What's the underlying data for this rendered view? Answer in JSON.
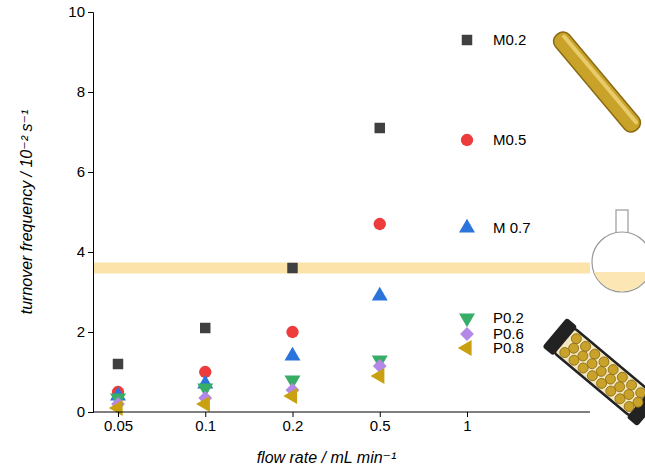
{
  "chart_data": {
    "type": "scatter",
    "x_label": "flow rate / mL min⁻¹",
    "y_label": "turnover frequency / 10⁻² s⁻¹",
    "categories": [
      "0.05",
      "0.1",
      "0.2",
      "0.5",
      "1"
    ],
    "ylim": [
      0,
      10
    ],
    "yticks": [
      0,
      2,
      4,
      6,
      8,
      10
    ],
    "reference_line": {
      "value": 3.6
    },
    "series": [
      {
        "name": "M0.2",
        "color": "#404040",
        "marker": "square",
        "values": [
          1.2,
          2.1,
          3.6,
          7.1,
          9.3
        ]
      },
      {
        "name": "M0.5",
        "color": "#ee3b3b",
        "marker": "circle",
        "values": [
          0.5,
          1.0,
          2.0,
          4.7,
          6.8
        ]
      },
      {
        "name": "M 0.7",
        "color": "#2a74dc",
        "marker": "triangle-up",
        "values": [
          0.4,
          0.7,
          1.4,
          2.9,
          4.6
        ]
      },
      {
        "name": "P0.2",
        "color": "#37ad68",
        "marker": "triangle-down",
        "values": [
          0.35,
          0.6,
          0.8,
          1.3,
          2.35
        ]
      },
      {
        "name": "P0.6",
        "color": "#b388e6",
        "marker": "diamond",
        "values": [
          0.2,
          0.35,
          0.55,
          1.15,
          1.95
        ]
      },
      {
        "name": "P0.8",
        "color": "#c9a010",
        "marker": "triangle-left",
        "values": [
          0.1,
          0.2,
          0.4,
          0.9,
          1.6
        ]
      }
    ]
  }
}
